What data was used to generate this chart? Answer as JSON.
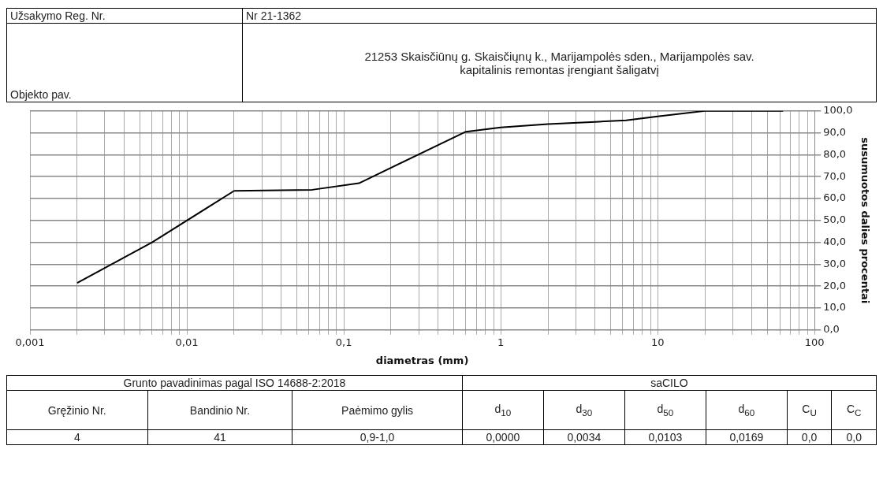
{
  "chart_data": {
    "type": "line",
    "xlabel": "diametras (mm)",
    "ylabel": "susumuotos dalies procentai",
    "x": [
      0.002,
      0.006,
      0.02,
      0.063,
      0.125,
      0.6,
      1,
      2,
      4,
      6.3,
      10,
      20,
      63
    ],
    "series": [
      {
        "color": "#000000",
        "values": [
          21.5,
          40,
          63.5,
          64,
          67,
          90.5,
          92.5,
          94,
          95,
          95.7,
          97.5,
          100,
          100
        ]
      }
    ],
    "log": "x",
    "xlim": [
      0.001,
      100
    ],
    "xticks": [
      {
        "value": 0.001,
        "label": "0,001"
      },
      {
        "value": 0.002,
        "label": null
      },
      {
        "value": 0.003,
        "label": null
      },
      {
        "value": 0.004,
        "label": null
      },
      {
        "value": 0.005,
        "label": null
      },
      {
        "value": 0.006,
        "label": null
      },
      {
        "value": 0.007,
        "label": null
      },
      {
        "value": 0.008,
        "label": null
      },
      {
        "value": 0.009,
        "label": null
      },
      {
        "value": 0.01,
        "label": "0,01"
      },
      {
        "value": 0.02,
        "label": null
      },
      {
        "value": 0.03,
        "label": null
      },
      {
        "value": 0.04,
        "label": null
      },
      {
        "value": 0.05,
        "label": null
      },
      {
        "value": 0.06,
        "label": null
      },
      {
        "value": 0.07,
        "label": null
      },
      {
        "value": 0.08,
        "label": null
      },
      {
        "value": 0.09,
        "label": null
      },
      {
        "value": 0.1,
        "label": "0,1"
      },
      {
        "value": 0.2,
        "label": null
      },
      {
        "value": 0.3,
        "label": null
      },
      {
        "value": 0.4,
        "label": null
      },
      {
        "value": 0.5,
        "label": null
      },
      {
        "value": 0.6,
        "label": null
      },
      {
        "value": 0.7,
        "label": null
      },
      {
        "value": 0.8,
        "label": null
      },
      {
        "value": 0.9,
        "label": null
      },
      1,
      {
        "value": 2,
        "label": null
      },
      {
        "value": 3,
        "label": null
      },
      {
        "value": 4,
        "label": null
      },
      {
        "value": 5,
        "label": null
      },
      {
        "value": 6,
        "label": null
      },
      {
        "value": 7,
        "label": null
      },
      {
        "value": 8,
        "label": null
      },
      {
        "value": 9,
        "label": null
      },
      10,
      {
        "value": 20,
        "label": null
      },
      {
        "value": 30,
        "label": null
      },
      {
        "value": 40,
        "label": null
      },
      {
        "value": 50,
        "label": null
      },
      {
        "value": 60,
        "label": null
      },
      {
        "value": 70,
        "label": null
      },
      {
        "value": 80,
        "label": null
      },
      {
        "value": 90,
        "label": null
      },
      100
    ],
    "ylim": [
      0,
      100
    ],
    "yticks": [
      {
        "value": 0,
        "label": "0,0"
      },
      {
        "value": 10,
        "label": "10,0"
      },
      {
        "value": 20,
        "label": "20,0"
      },
      {
        "value": 30,
        "label": "30,0"
      },
      {
        "value": 40,
        "label": "40,0"
      },
      {
        "value": 50,
        "label": "50,0"
      },
      {
        "value": 60,
        "label": "60,0"
      },
      {
        "value": 70,
        "label": "70,0"
      },
      {
        "value": 80,
        "label": "80,0"
      },
      {
        "value": 90,
        "label": "90,0"
      },
      {
        "value": 100,
        "label": "100,0"
      }
    ],
    "grid": true,
    "marker": "none",
    "line_style": "solid",
    "legend": false,
    "annotations": [
      "Užsakymo Reg. Nr.",
      "Nr 21-1362",
      "Objekto pav.",
      "21253  Skaisčiūnų g. Skaisčiųnų k., Marijampolės sden., Marijampolės sav.",
      "kapitalinis remontas įrengiant šaligatvį",
      "Grunto pavadinimas pagal ISO 14688-2:2018",
      "saCILO",
      "Gręžinio Nr.",
      "Bandinio Nr.",
      "Paėmimo gylis",
      "d$_{10}$",
      "d$_{30}$",
      "d$_{50}$",
      "d$_{60}$",
      "C$_{U}$",
      "C$_{C}$",
      "4",
      "41",
      "0,9-1,0",
      "0,0000",
      "0,0034",
      "0,0103",
      "0,0169",
      "0,0",
      "0,0"
    ]
  }
}
